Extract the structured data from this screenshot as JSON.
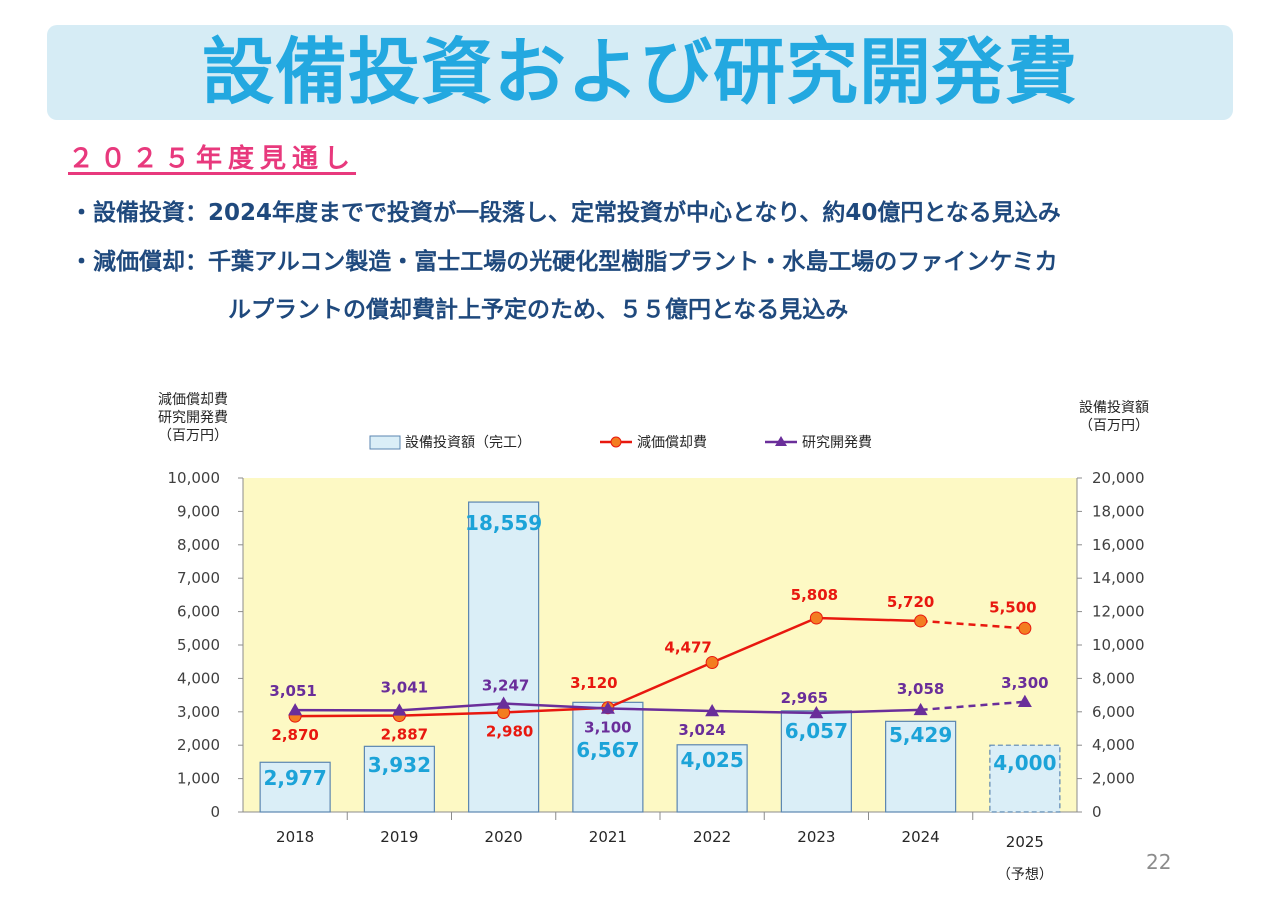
{
  "title": "設備投資および研究開発費",
  "subtitle": "２０２５年度見通し",
  "bullets": [
    {
      "line1": "・設備投資：2024年度までで投資が一段落し、定常投資が中心となり、約40億円となる見込み"
    },
    {
      "line1": "・減価償却：千葉アルコン製造・富士工場の光硬化型樹脂プラント・水島工場のファインケミカ",
      "line2": "ルプラントの償却費計上予定のため、５５億円となる見込み"
    }
  ],
  "page_number": "22",
  "chart_data": {
    "type": "bar",
    "categories": [
      "2018",
      "2019",
      "2020",
      "2021",
      "2022",
      "2023",
      "2024",
      "2025"
    ],
    "category_note": "（予想）",
    "left_axis": {
      "label_lines": [
        "減価償却費",
        "研究開発費",
        "（百万円）"
      ],
      "ylim": [
        0,
        10000
      ],
      "ticks": [
        "0",
        "1,000",
        "2,000",
        "3,000",
        "4,000",
        "5,000",
        "6,000",
        "7,000",
        "8,000",
        "9,000",
        "10,000"
      ]
    },
    "right_axis": {
      "label_lines": [
        "設備投資額",
        "（百万円）"
      ],
      "ylim": [
        0,
        20000
      ],
      "ticks": [
        "0",
        "2,000",
        "4,000",
        "6,000",
        "8,000",
        "10,000",
        "12,000",
        "14,000",
        "16,000",
        "18,000",
        "20,000"
      ]
    },
    "series": [
      {
        "name": "設備投資額（完工）",
        "kind": "bar",
        "axis": "right",
        "color": "#daeef7",
        "label_color": "#1ca3d8",
        "values": [
          2977,
          3932,
          18559,
          6567,
          4025,
          6057,
          5429,
          4000
        ],
        "labels": [
          "2,977",
          "3,932",
          "18,559",
          "6,567",
          "4,025",
          "6,057",
          "5,429",
          "4,000"
        ]
      },
      {
        "name": "減価償却費",
        "kind": "line",
        "axis": "left",
        "color": "#e8180f",
        "marker_color": "#f37d21",
        "values": [
          2870,
          2887,
          2980,
          3120,
          4477,
          5808,
          5720,
          5500
        ],
        "labels": [
          "2,870",
          "2,887",
          "2,980",
          "3,120",
          "4,477",
          "5,808",
          "5,720",
          "5,500"
        ]
      },
      {
        "name": "研究開発費",
        "kind": "line",
        "axis": "left",
        "color": "#6a2e9a",
        "values": [
          3051,
          3041,
          3247,
          3100,
          3024,
          2965,
          3058,
          3300
        ],
        "labels": [
          "3,051",
          "3,041",
          "3,247",
          "3,100",
          "3,024",
          "2,965",
          "3,058",
          "3,300"
        ]
      }
    ],
    "forecast_index": 7,
    "plot_background": "#fdf9c4",
    "legend_position": "top-center"
  }
}
